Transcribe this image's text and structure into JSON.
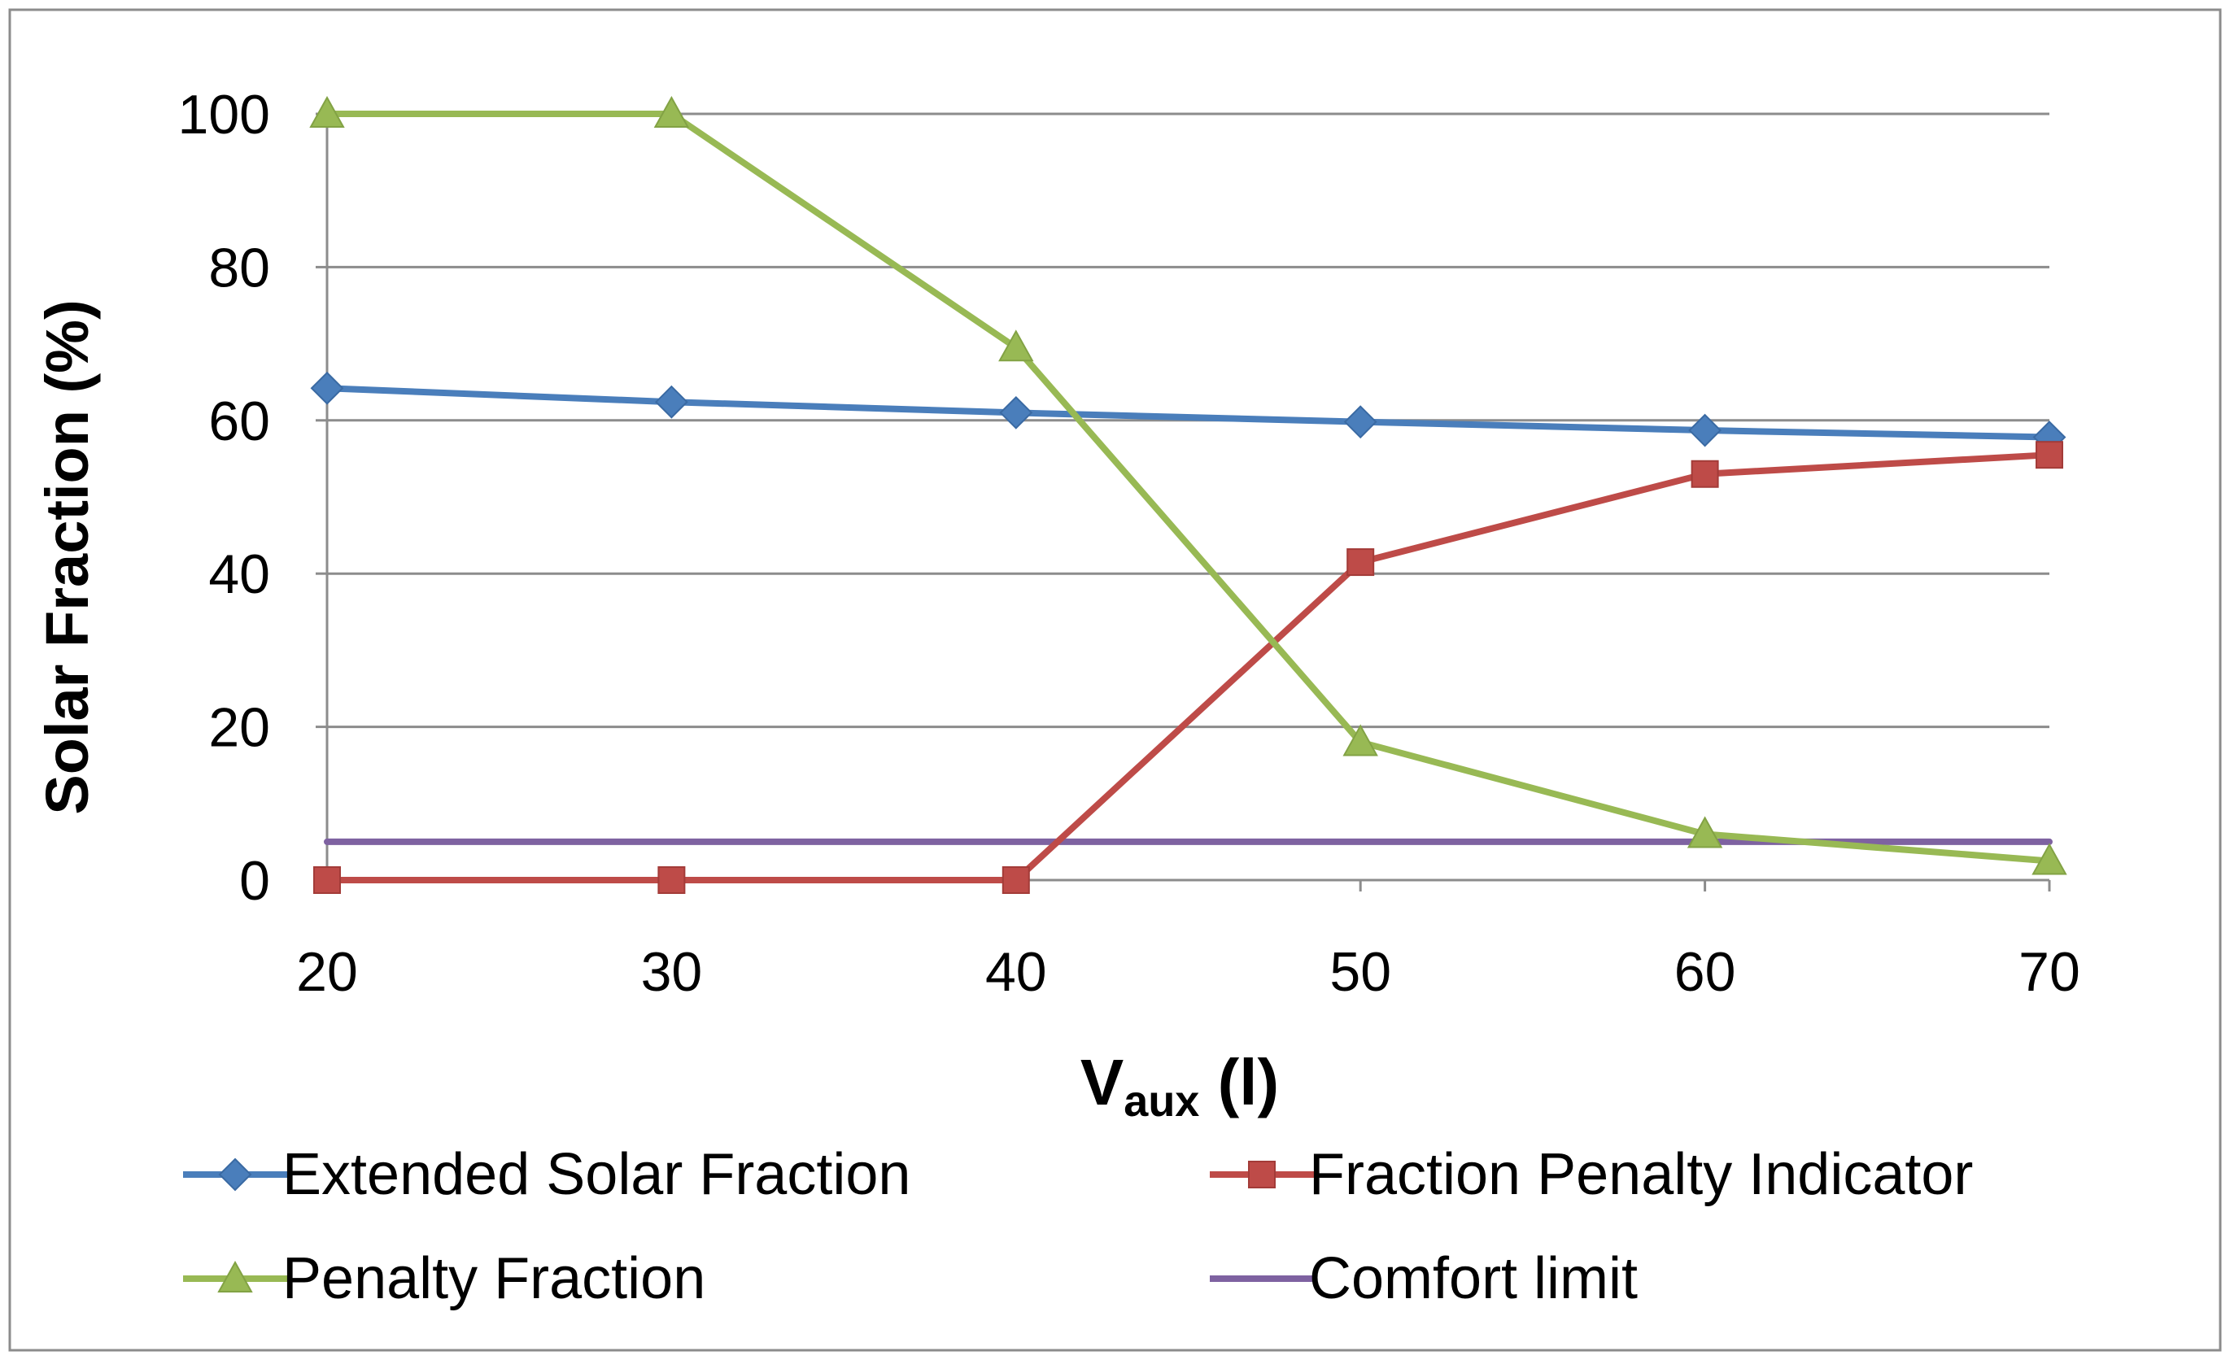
{
  "chart_data": {
    "type": "line",
    "title": "",
    "xlabel": {
      "main": "V",
      "sub": "aux",
      "unit": " (l)"
    },
    "ylabel": "Solar Fraction (%)",
    "x": [
      20,
      30,
      40,
      50,
      60,
      70
    ],
    "x_ticks": [
      "20",
      "30",
      "40",
      "50",
      "60",
      "70"
    ],
    "y_ticks": [
      "0",
      "20",
      "40",
      "60",
      "80",
      "100"
    ],
    "xlim": [
      20,
      70
    ],
    "ylim": [
      0,
      100
    ],
    "grid": true,
    "legend_position": "bottom",
    "series": [
      {
        "name": "Extended Solar Fraction",
        "color": "#4a7ebb",
        "marker": "diamond",
        "values": [
          64.2,
          62.4,
          61.0,
          59.8,
          58.7,
          57.8
        ]
      },
      {
        "name": "Fraction Penalty Indicator",
        "color": "#be4b48",
        "marker": "square",
        "values": [
          0,
          0,
          0,
          41.5,
          53.0,
          55.5
        ]
      },
      {
        "name": "Penalty Fraction",
        "color": "#98b954",
        "marker": "triangle",
        "values": [
          100,
          100,
          69.5,
          18.0,
          6.0,
          2.5
        ]
      },
      {
        "name": "Comfort limit",
        "color": "#7e62a1",
        "marker": "none",
        "values": [
          5,
          5,
          5,
          5,
          5,
          5
        ]
      }
    ]
  }
}
